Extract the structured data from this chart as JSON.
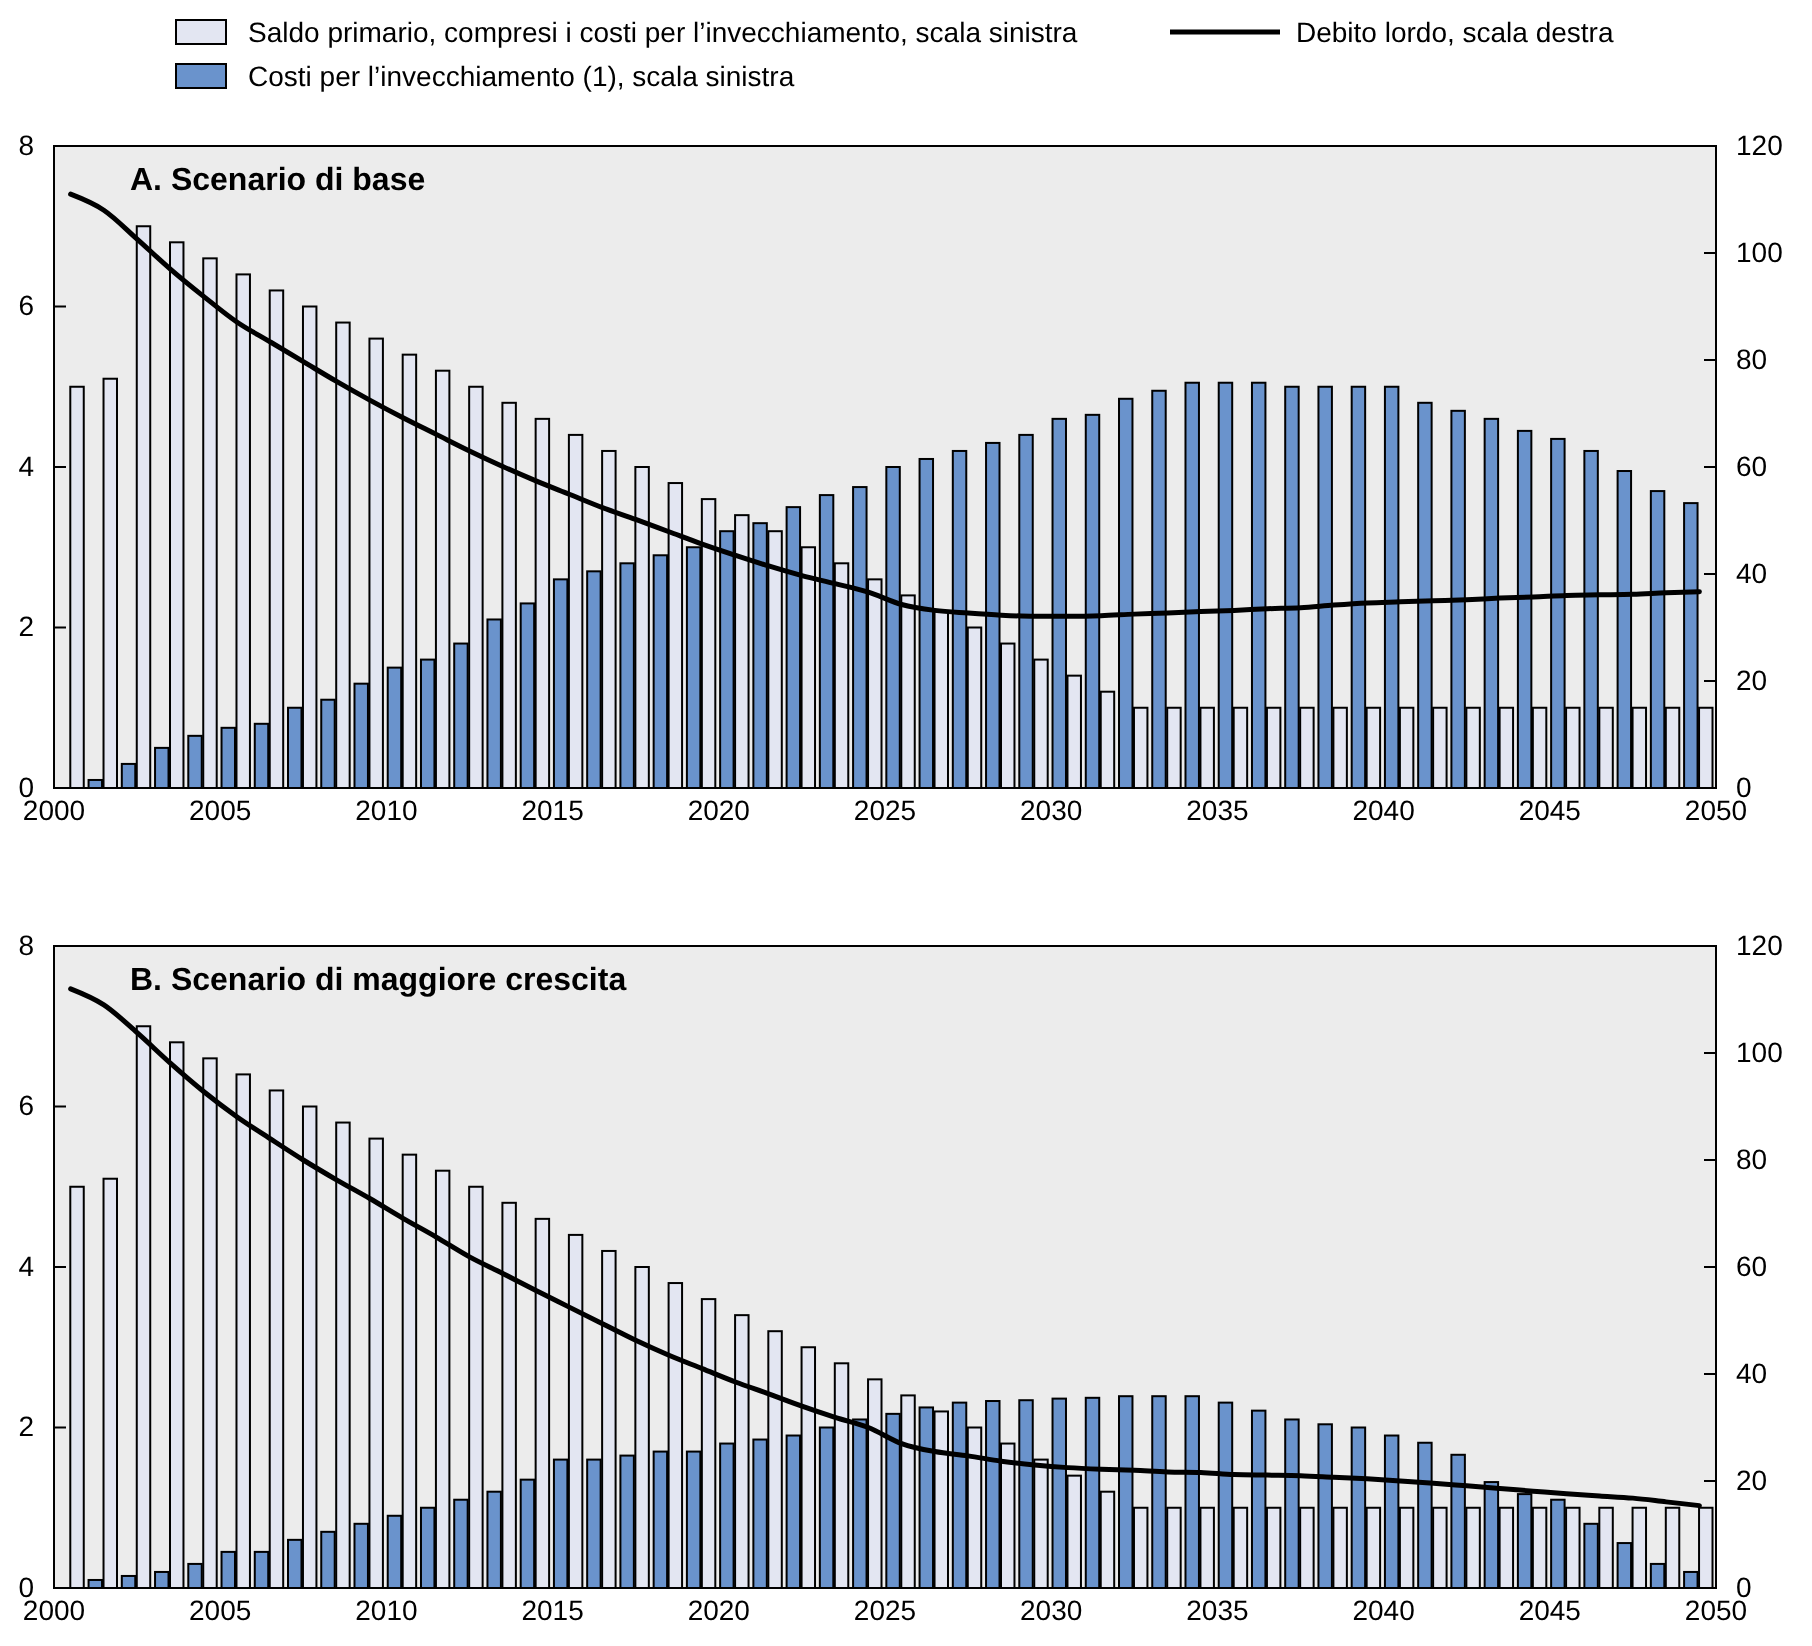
{
  "chart_data": [
    {
      "type": "bar",
      "title": "A. Scenario di base",
      "x": [
        2000.5,
        2001.5,
        2002.5,
        2003.5,
        2004.5,
        2005.5,
        2006.5,
        2007.5,
        2008.5,
        2009.5,
        2010.5,
        2011.5,
        2012.5,
        2013.5,
        2014.5,
        2015.5,
        2016.5,
        2017.5,
        2018.5,
        2019.5,
        2020.5,
        2021.5,
        2022.5,
        2023.5,
        2024.5,
        2025.5,
        2026.5,
        2027.5,
        2028.5,
        2029.5,
        2030.5,
        2031.5,
        2032.5,
        2033.5,
        2034.5,
        2035.5,
        2036.5,
        2037.5,
        2038.5,
        2039.5,
        2040.5,
        2041.5,
        2042.5,
        2043.5,
        2044.5,
        2045.5,
        2046.5,
        2047.5,
        2048.5,
        2049.5
      ],
      "xlim": [
        2000,
        2050
      ],
      "xticks": [
        2000,
        2005,
        2010,
        2015,
        2020,
        2025,
        2030,
        2035,
        2040,
        2045,
        2050
      ],
      "ylim": [
        0,
        8
      ],
      "yticks": [
        0,
        2,
        4,
        6,
        8
      ],
      "y2lim": [
        0,
        120
      ],
      "y2ticks": [
        0,
        20,
        40,
        60,
        80,
        100,
        120
      ],
      "legend": "top",
      "grid": false,
      "series": [
        {
          "name": "Costi per l’invecchiamento (1), scala sinistra",
          "color": "#6a93cc",
          "values": [
            null,
            0.1,
            0.3,
            0.5,
            0.65,
            0.75,
            0.8,
            1.0,
            1.1,
            1.3,
            1.5,
            1.6,
            1.8,
            2.1,
            2.3,
            2.6,
            2.7,
            2.8,
            2.9,
            3.0,
            3.2,
            3.3,
            3.5,
            3.65,
            3.75,
            4.0,
            4.1,
            4.2,
            4.3,
            4.4,
            4.6,
            4.65,
            4.85,
            4.95,
            5.05,
            5.05,
            5.05,
            5.0,
            5.0,
            5.0,
            5.0,
            4.8,
            4.7,
            4.6,
            4.45,
            4.35,
            4.2,
            3.95,
            3.7,
            3.55
          ]
        },
        {
          "name": "Saldo primario, compresi i costi per l’invecchiamento, scala sinistra",
          "color": "#e3e6f2",
          "values": [
            5.0,
            5.1,
            7.0,
            6.8,
            6.6,
            6.4,
            6.2,
            6.0,
            5.8,
            5.6,
            5.4,
            5.2,
            5.0,
            4.8,
            4.6,
            4.4,
            4.2,
            4.0,
            3.8,
            3.6,
            3.4,
            3.2,
            3.0,
            2.8,
            2.6,
            2.4,
            2.2,
            2.0,
            1.8,
            1.6,
            1.4,
            1.2,
            1.0,
            1.0,
            1.0,
            1.0,
            1.0,
            1.0,
            1.0,
            1.0,
            1.0,
            1.0,
            1.0,
            1.0,
            1.0,
            1.0,
            1.0,
            1.0,
            1.0,
            1.0
          ]
        },
        {
          "name": "Debito lordo, scala destra",
          "type": "line",
          "axis": "y2",
          "color": "#000000",
          "values": [
            111,
            108,
            102.6,
            97,
            91.9,
            87.1,
            83.4,
            79.7,
            76,
            72.5,
            69.2,
            66.1,
            63,
            60.1,
            57.4,
            54.9,
            52.4,
            50.2,
            47.9,
            45.6,
            43.5,
            41.5,
            39.7,
            38.2,
            36.6,
            34.3,
            33.2,
            32.7,
            32.3,
            32.1,
            32.1,
            32.2,
            32.5,
            32.7,
            33,
            33.2,
            33.5,
            33.7,
            34.2,
            34.6,
            34.8,
            35,
            35.2,
            35.5,
            35.7,
            36,
            36.1,
            36.2,
            36.5,
            36.7
          ]
        }
      ]
    },
    {
      "type": "bar",
      "title": "B. Scenario di maggiore crescita",
      "x": [
        2000.5,
        2001.5,
        2002.5,
        2003.5,
        2004.5,
        2005.5,
        2006.5,
        2007.5,
        2008.5,
        2009.5,
        2010.5,
        2011.5,
        2012.5,
        2013.5,
        2014.5,
        2015.5,
        2016.5,
        2017.5,
        2018.5,
        2019.5,
        2020.5,
        2021.5,
        2022.5,
        2023.5,
        2024.5,
        2025.5,
        2026.5,
        2027.5,
        2028.5,
        2029.5,
        2030.5,
        2031.5,
        2032.5,
        2033.5,
        2034.5,
        2035.5,
        2036.5,
        2037.5,
        2038.5,
        2039.5,
        2040.5,
        2041.5,
        2042.5,
        2043.5,
        2044.5,
        2045.5,
        2046.5,
        2047.5,
        2048.5,
        2049.5
      ],
      "xlim": [
        2000,
        2050
      ],
      "xticks": [
        2000,
        2005,
        2010,
        2015,
        2020,
        2025,
        2030,
        2035,
        2040,
        2045,
        2050
      ],
      "ylim": [
        0,
        8
      ],
      "yticks": [
        0,
        2,
        4,
        6,
        8
      ],
      "y2lim": [
        0,
        120
      ],
      "y2ticks": [
        0,
        20,
        40,
        60,
        80,
        100,
        120
      ],
      "grid": false,
      "series": [
        {
          "color": "#6a93cc",
          "values": [
            null,
            0.1,
            0.15,
            0.2,
            0.3,
            0.45,
            0.45,
            0.6,
            0.7,
            0.8,
            0.9,
            1.0,
            1.1,
            1.2,
            1.35,
            1.6,
            1.6,
            1.65,
            1.7,
            1.7,
            1.8,
            1.85,
            1.9,
            2.0,
            2.1,
            2.17,
            2.25,
            2.31,
            2.33,
            2.34,
            2.36,
            2.37,
            2.39,
            2.39,
            2.39,
            2.31,
            2.21,
            2.1,
            2.04,
            2.0,
            1.9,
            1.81,
            1.66,
            1.32,
            1.17,
            1.1,
            0.8,
            0.56,
            0.3,
            0.2
          ]
        },
        {
          "color": "#e3e6f2",
          "values": [
            5.0,
            5.1,
            7.0,
            6.8,
            6.6,
            6.4,
            6.2,
            6.0,
            5.8,
            5.6,
            5.4,
            5.2,
            5.0,
            4.8,
            4.6,
            4.4,
            4.2,
            4.0,
            3.8,
            3.6,
            3.4,
            3.2,
            3.0,
            2.8,
            2.6,
            2.4,
            2.2,
            2.0,
            1.8,
            1.6,
            1.4,
            1.2,
            1.0,
            1.0,
            1.0,
            1.0,
            1.0,
            1.0,
            1.0,
            1.0,
            1.0,
            1.0,
            1.0,
            1.0,
            1.0,
            1.0,
            1.0,
            1.0,
            1.0,
            1.0
          ]
        },
        {
          "type": "line",
          "axis": "y2",
          "color": "#000000",
          "values": [
            112,
            109,
            103.8,
            98.1,
            92.8,
            88.1,
            84,
            80,
            76.3,
            72.8,
            69.1,
            65.6,
            61.9,
            58.8,
            55.6,
            52.5,
            49.4,
            46.3,
            43.5,
            41,
            38.5,
            36.3,
            34,
            31.9,
            30,
            27,
            25.5,
            24.7,
            23.7,
            23,
            22.5,
            22.2,
            22,
            21.7,
            21.6,
            21.2,
            21.1,
            21,
            20.7,
            20.4,
            20,
            19.6,
            19.1,
            18.6,
            18.1,
            17.6,
            17.2,
            16.8,
            16.1,
            15.4
          ]
        }
      ]
    }
  ]
}
